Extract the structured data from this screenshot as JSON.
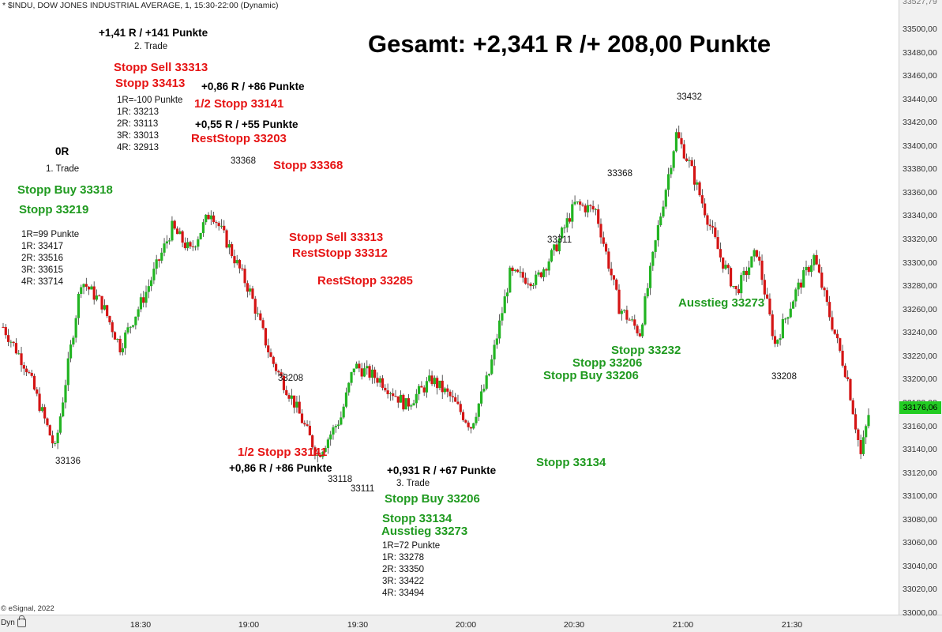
{
  "header": {
    "title": "* $INDU, DOW JONES INDUSTRIAL AVERAGE, 1, 15:30-22:00 (Dynamic)"
  },
  "footer": {
    "copyright": "© eSignal, 2022",
    "mode": "Dyn"
  },
  "total": "Gesamt: +2,341 R /+ 208,00 Punkte",
  "last_price": "33176,06",
  "top_price_partial": "33527,79",
  "colors": {
    "up": "#22b422",
    "down": "#d41414",
    "red_text": "#e61414",
    "green_text": "#1f9a1f"
  },
  "chart_data": {
    "type": "candlestick",
    "title": "* $INDU, DOW JONES INDUSTRIAL AVERAGE, 1, 15:30-22:00 (Dynamic)",
    "x_ticks": [
      "18:30",
      "19:00",
      "19:30",
      "20:00",
      "20:30",
      "21:00",
      "21:30"
    ],
    "y_ticks": [
      "33500,00",
      "33480,00",
      "33460,00",
      "33440,00",
      "33420,00",
      "33400,00",
      "33380,00",
      "33360,00",
      "33340,00",
      "33320,00",
      "33300,00",
      "33280,00",
      "33260,00",
      "33240,00",
      "33220,00",
      "33200,00",
      "33180,00",
      "33160,00",
      "33140,00",
      "33120,00",
      "33100,00",
      "33080,00",
      "33060,00",
      "33040,00",
      "33020,00",
      "33000,00"
    ],
    "ylim": [
      33000,
      33520
    ],
    "anchors": [
      {
        "t": 0,
        "v": 33245
      },
      {
        "t": 9,
        "v": 33210
      },
      {
        "t": 20,
        "v": 33140
      },
      {
        "t": 30,
        "v": 33285
      },
      {
        "t": 38,
        "v": 33265
      },
      {
        "t": 45,
        "v": 33228
      },
      {
        "t": 55,
        "v": 33275
      },
      {
        "t": 65,
        "v": 33330
      },
      {
        "t": 72,
        "v": 33310
      },
      {
        "t": 80,
        "v": 33345
      },
      {
        "t": 86,
        "v": 33318
      },
      {
        "t": 95,
        "v": 33275
      },
      {
        "t": 103,
        "v": 33218
      },
      {
        "t": 112,
        "v": 33180
      },
      {
        "t": 121,
        "v": 33135
      },
      {
        "t": 130,
        "v": 33168
      },
      {
        "t": 135,
        "v": 33212
      },
      {
        "t": 145,
        "v": 33200
      },
      {
        "t": 155,
        "v": 33178
      },
      {
        "t": 165,
        "v": 33200
      },
      {
        "t": 172,
        "v": 33185
      },
      {
        "t": 180,
        "v": 33160
      },
      {
        "t": 187,
        "v": 33205
      },
      {
        "t": 195,
        "v": 33290
      },
      {
        "t": 205,
        "v": 33285
      },
      {
        "t": 212,
        "v": 33310
      },
      {
        "t": 220,
        "v": 33350
      },
      {
        "t": 228,
        "v": 33345
      },
      {
        "t": 237,
        "v": 33262
      },
      {
        "t": 245,
        "v": 33240
      },
      {
        "t": 252,
        "v": 33330
      },
      {
        "t": 259,
        "v": 33410
      },
      {
        "t": 264,
        "v": 33385
      },
      {
        "t": 270,
        "v": 33345
      },
      {
        "t": 276,
        "v": 33305
      },
      {
        "t": 282,
        "v": 33275
      },
      {
        "t": 290,
        "v": 33310
      },
      {
        "t": 297,
        "v": 33230
      },
      {
        "t": 305,
        "v": 33275
      },
      {
        "t": 312,
        "v": 33305
      },
      {
        "t": 318,
        "v": 33255
      },
      {
        "t": 325,
        "v": 33200
      },
      {
        "t": 330,
        "v": 33135
      },
      {
        "t": 333,
        "v": 33170
      }
    ],
    "price_labels": [
      "33136",
      "33368",
      "33208",
      "33118",
      "33111",
      "33311",
      "33368",
      "33432",
      "33208"
    ],
    "trades": [
      {
        "name": "1. Trade",
        "result": "0R",
        "entry": "Stopp Buy 33318",
        "stop": "Stopp 33219",
        "targets": [
          "1R=99 Punkte",
          "1R: 33417",
          "2R: 33516",
          "3R: 33615",
          "4R: 33714"
        ]
      },
      {
        "name": "2. Trade",
        "result": "+1,41 R / +141 Punkte",
        "entry": "Stopp Sell 33313",
        "stop": "Stopp 33413",
        "targets": [
          "1R=-100 Punkte",
          "1R: 33213",
          "2R: 33113",
          "3R: 33013",
          "4R: 32913"
        ]
      },
      {
        "name": "3. Trade",
        "result": "+0,931 R / +67 Punkte",
        "entry": "Stopp Buy 33206",
        "stop": "Stopp 33134",
        "exit": "Ausstieg 33273",
        "targets": [
          "1R=72 Punkte",
          "1R: 33278",
          "2R: 33350",
          "3R: 33422",
          "4R: 33494"
        ]
      }
    ],
    "annotations": {
      "a1": "+0,86 R / +86 Punkte",
      "a2": "1/2 Stopp 33141",
      "a3": "+0,55 R / +55 Punkte",
      "a4": "RestStopp 33203",
      "a5": "Stopp 33368",
      "a6": "Stopp Sell 33313",
      "a7": "RestStopp 33312",
      "a8": "RestStopp 33285",
      "a9": "1/2 Stopp 33141",
      "a10": "+0,86 R / +86 Punkte",
      "a11": "Stopp 33232",
      "a12": "Stopp 33206",
      "a13": "Stopp Buy 33206",
      "a14": "Stopp 33134",
      "a15": "Ausstieg 33273"
    }
  }
}
